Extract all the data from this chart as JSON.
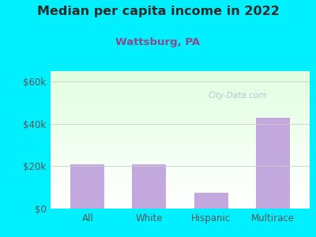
{
  "title": "Median per capita income in 2022",
  "subtitle": "Wattsburg, PA",
  "categories": [
    "All",
    "White",
    "Hispanic",
    "Multirace"
  ],
  "values": [
    21000,
    21000,
    7500,
    43000
  ],
  "bar_color": "#c2a8dc",
  "title_color": "#2a2a2a",
  "subtitle_color": "#8b4a8b",
  "background_color": "#00f0ff",
  "yticks": [
    0,
    20000,
    40000,
    60000
  ],
  "ytick_labels": [
    "$0",
    "$20k",
    "$40k",
    "$60k"
  ],
  "ylim": [
    0,
    65000
  ],
  "watermark": "City-Data.com",
  "tick_color": "#555555",
  "grid_color": "#cccccc"
}
